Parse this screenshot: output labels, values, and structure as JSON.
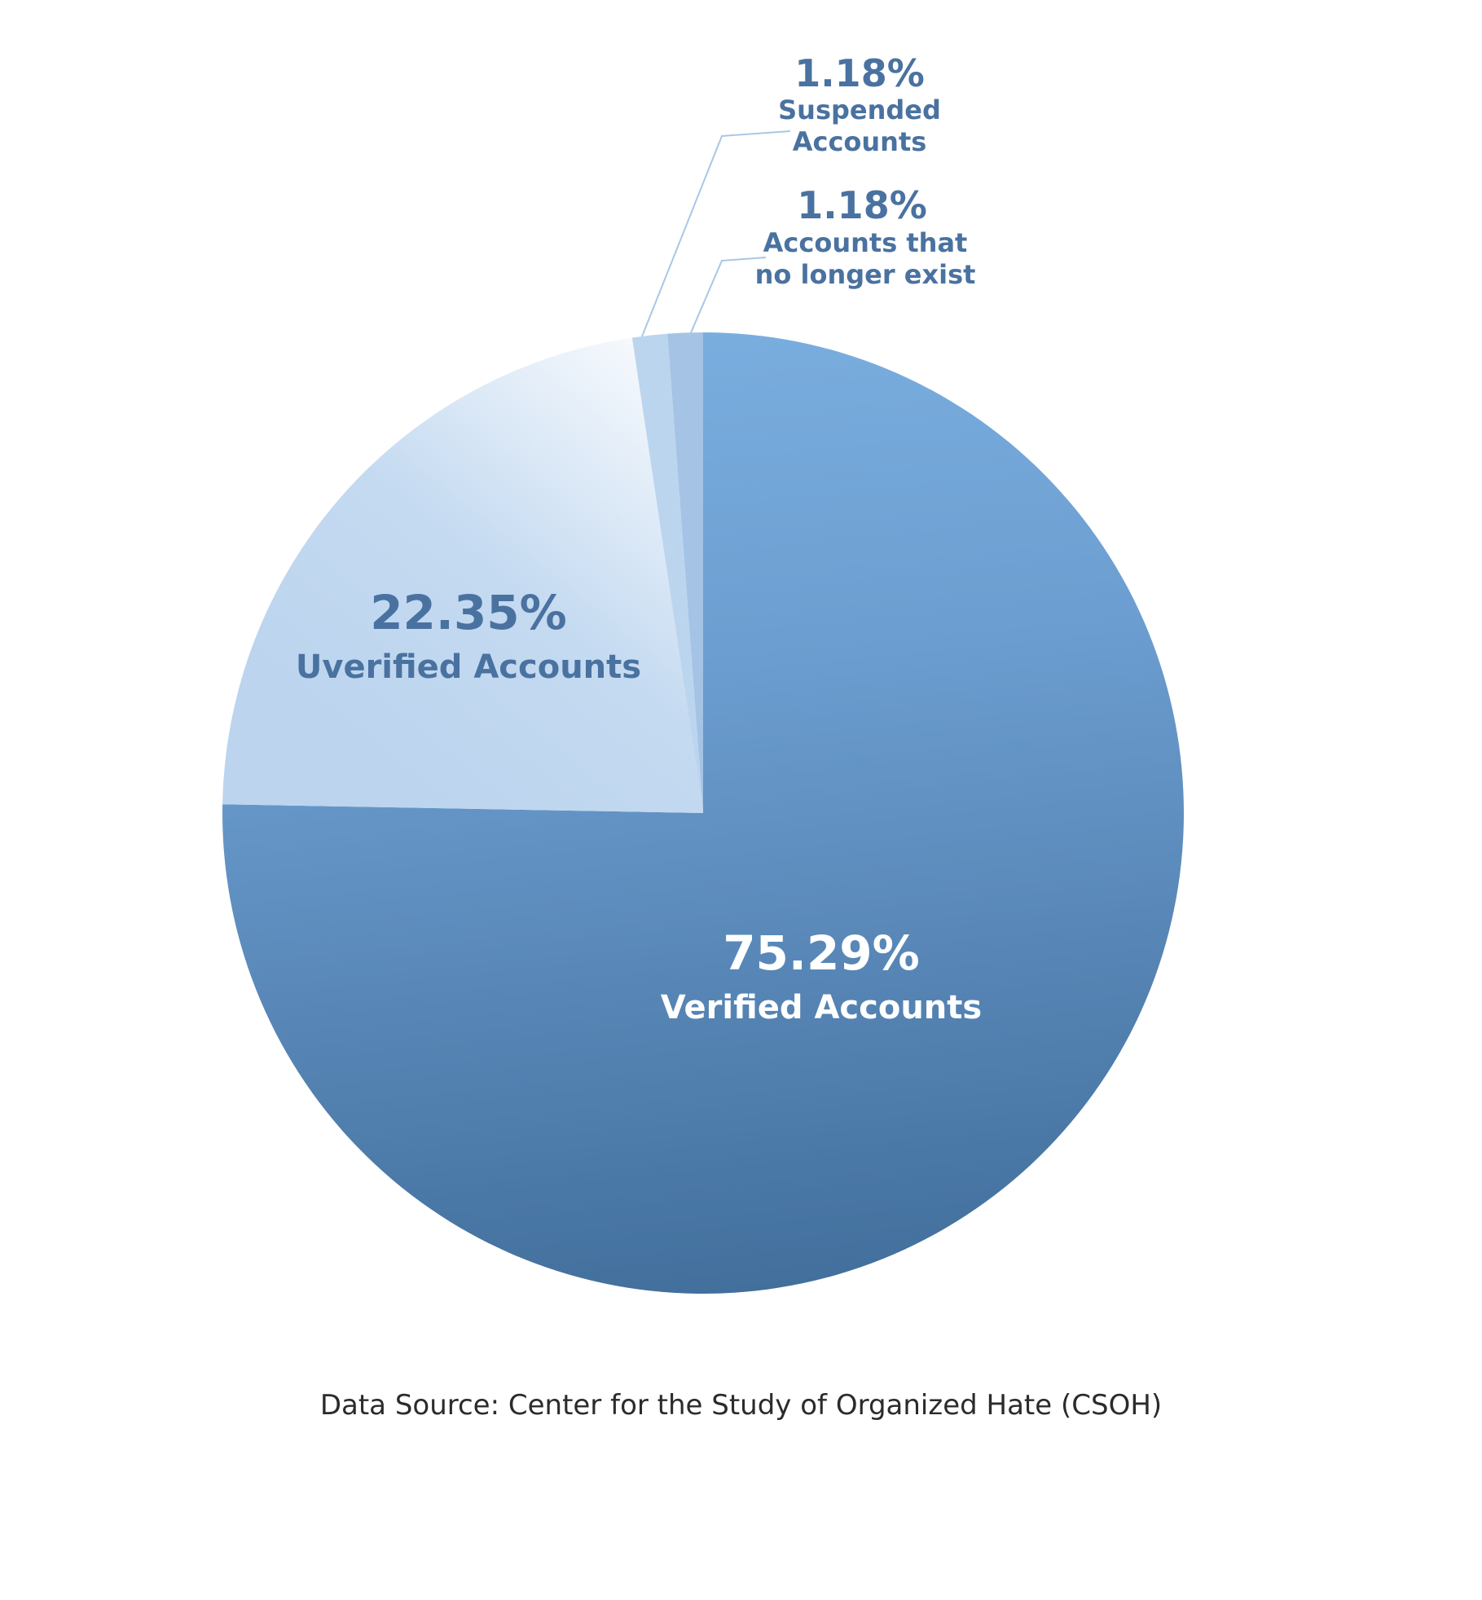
{
  "chart_data": {
    "type": "pie",
    "title": "",
    "slices": [
      {
        "label_pct": "75.29%",
        "label_name": "Verified Accounts",
        "value": 75.29,
        "color": "#6a9bcb"
      },
      {
        "label_pct": "22.35%",
        "label_name": "Uverified Accounts",
        "value": 22.35,
        "color": "#c4daf1"
      },
      {
        "label_pct": "1.18%",
        "label_name_lines": [
          "Suspended",
          "Accounts"
        ],
        "value": 1.18,
        "color": "#bcd5ee"
      },
      {
        "label_pct": "1.18%",
        "label_name_lines": [
          "Accounts that",
          "no longer exist"
        ],
        "value": 1.18,
        "color": "#a4c3e5"
      }
    ],
    "start": "12 o'clock",
    "direction": "clockwise",
    "legend": "none",
    "label_colors": {
      "dark": "#4a72a0",
      "light": "#ffffff"
    }
  },
  "source": "Data Source: Center for the Study of Organized Hate (CSOH)"
}
